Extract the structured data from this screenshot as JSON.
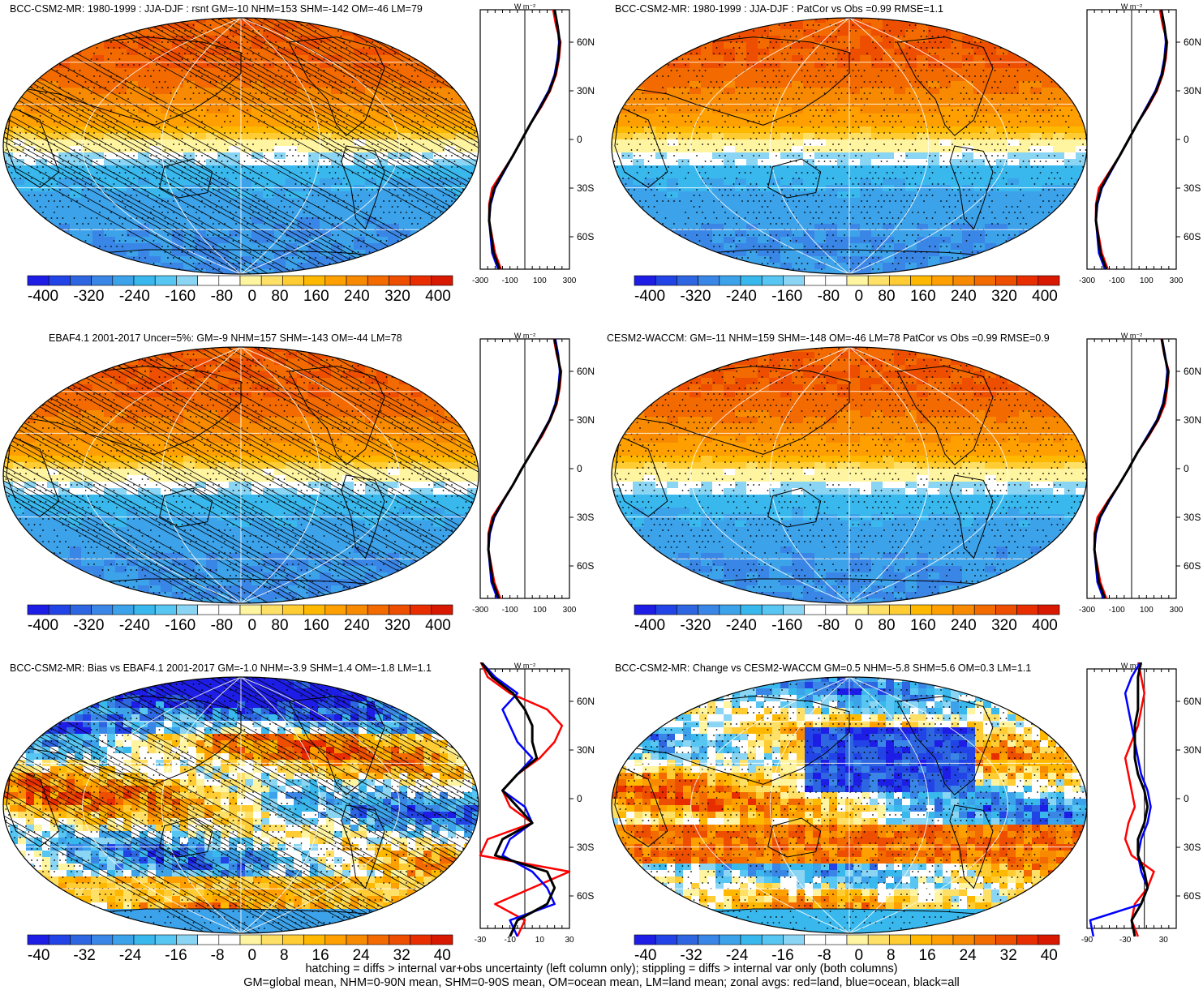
{
  "panels": [
    {
      "id": "p1",
      "title": "BCC-CSM2-MR: 1980-1999 : JJA-DJF : rsnt GM=-10 NHM=153 SHM=-142 OM=-46 LM=79",
      "kind": "seasonal",
      "hatching": true,
      "zonal_unit": "W m⁻²",
      "zonal_xticks": [
        "-300",
        "-100",
        "100",
        "300"
      ],
      "zonal_yticks": [
        "60N",
        "30N",
        "0",
        "30S",
        "60S"
      ],
      "colorbar_labels": [
        "-400",
        "-320",
        "-240",
        "-160",
        "-80",
        "0",
        "80",
        "160",
        "240",
        "320",
        "400"
      ]
    },
    {
      "id": "p2",
      "title": "BCC-CSM2-MR: 1980-1999 : JJA-DJF : PatCor vs Obs =0.99 RMSE=1.1",
      "kind": "seasonal",
      "hatching": false,
      "zonal_unit": "W m⁻²",
      "zonal_xticks": [
        "-300",
        "-100",
        "100",
        "300"
      ],
      "zonal_yticks": [
        "60N",
        "30N",
        "0",
        "30S",
        "60S"
      ],
      "colorbar_labels": [
        "-400",
        "-320",
        "-240",
        "-160",
        "-80",
        "0",
        "80",
        "160",
        "240",
        "320",
        "400"
      ]
    },
    {
      "id": "p3",
      "title": "EBAF4.1 2001-2017 Uncer=5%: GM=-9 NHM=157 SHM=-143 OM=-44 LM=78",
      "kind": "seasonal",
      "hatching": true,
      "zonal_unit": "W m⁻²",
      "zonal_xticks": [
        "-300",
        "-100",
        "100",
        "300"
      ],
      "zonal_yticks": [
        "60N",
        "30N",
        "0",
        "30S",
        "60S"
      ],
      "colorbar_labels": [
        "-400",
        "-320",
        "-240",
        "-160",
        "-80",
        "0",
        "80",
        "160",
        "240",
        "320",
        "400"
      ]
    },
    {
      "id": "p4",
      "title": "CESM2-WACCM: GM=-11 NHM=159 SHM=-148 OM=-46 LM=78 PatCor vs Obs =0.99 RMSE=0.9",
      "kind": "seasonal",
      "hatching": false,
      "zonal_unit": "W m⁻²",
      "zonal_xticks": [
        "-300",
        "-100",
        "100",
        "300"
      ],
      "zonal_yticks": [
        "60N",
        "30N",
        "0",
        "30S",
        "60S"
      ],
      "colorbar_labels": [
        "-400",
        "-320",
        "-240",
        "-160",
        "-80",
        "0",
        "80",
        "160",
        "240",
        "320",
        "400"
      ]
    },
    {
      "id": "p5",
      "title": "BCC-CSM2-MR: Bias vs EBAF4.1 2001-2017 GM=-1.0 NHM=-3.9 SHM=1.4 OM=-1.8 LM=1.1",
      "kind": "bias",
      "hatching": true,
      "zonal_unit": "W m⁻²",
      "zonal_xticks": [
        "-30",
        "-10",
        "10",
        "30"
      ],
      "zonal_yticks": [
        "60N",
        "30N",
        "0",
        "30S",
        "60S"
      ],
      "colorbar_labels": [
        "-40",
        "-32",
        "-24",
        "-16",
        "-8",
        "0",
        "8",
        "16",
        "24",
        "32",
        "40"
      ]
    },
    {
      "id": "p6",
      "title": "BCC-CSM2-MR: Change vs CESM2-WACCM GM=0.5 NHM=-5.8 SHM=5.6 OM=0.3 LM=1.1",
      "kind": "change",
      "hatching": false,
      "zonal_unit": "W m⁻²",
      "zonal_xticks": [
        "-90",
        "-30",
        "30"
      ],
      "zonal_yticks": [
        "60N",
        "30N",
        "0",
        "30S",
        "60S"
      ],
      "colorbar_labels": [
        "-40",
        "-32",
        "-24",
        "-16",
        "-8",
        "0",
        "8",
        "16",
        "24",
        "32",
        "40"
      ]
    }
  ],
  "colors": {
    "colorbar": [
      "#1d1de6",
      "#2244e6",
      "#2d66e0",
      "#3a86e6",
      "#3ca2ea",
      "#39b8ee",
      "#58c6f2",
      "#8ad4f4",
      "#ffffff",
      "#ffffff",
      "#fff4a0",
      "#ffe066",
      "#ffcc33",
      "#ffb800",
      "#ffa000",
      "#f78a00",
      "#f26a00",
      "#ee4e00",
      "#e82e00",
      "#d81800"
    ],
    "land_line": "#000000",
    "zonal_land": "#ff0000",
    "zonal_ocean": "#0000ff",
    "zonal_all": "#000000"
  },
  "footer": {
    "line1": "hatching = diffs > internal var+obs uncertainty (left column only); stippling = diffs > internal var only (both columns)",
    "line2": "GM=global mean, NHM=0-90N mean, SHM=0-90S mean, OM=ocean mean, LM=land mean; zonal avgs: red=land, blue=ocean, black=all"
  },
  "chart_data": [
    {
      "type": "heatmap",
      "title": "BCC-CSM2-MR: 1980-1999 : JJA-DJF : rsnt GM=-10 NHM=153 SHM=-142 OM=-46 LM=79",
      "colorbar_ticks": [
        -400,
        -320,
        -240,
        -160,
        -80,
        0,
        80,
        160,
        240,
        320,
        400
      ],
      "zonal_mean": {
        "xlabel": "W m⁻²",
        "xlim": [
          -300,
          300
        ],
        "lat": [
          80,
          70,
          60,
          50,
          40,
          30,
          20,
          10,
          0,
          -10,
          -20,
          -30,
          -40,
          -50,
          -60,
          -70,
          -80
        ],
        "series": [
          {
            "name": "land",
            "values": [
              190,
              210,
              240,
              230,
              210,
              170,
              110,
              40,
              -20,
              -80,
              -150,
              -220,
              -240,
              -240,
              -220,
              -200,
              -160
            ]
          },
          {
            "name": "ocean",
            "values": [
              200,
              220,
              230,
              220,
              200,
              160,
              100,
              40,
              -20,
              -80,
              -140,
              -200,
              -230,
              -240,
              -230,
              -220,
              -180
            ]
          },
          {
            "name": "all",
            "values": [
              200,
              220,
              235,
              225,
              205,
              165,
              105,
              40,
              -20,
              -80,
              -145,
              -205,
              -235,
              -240,
              -225,
              -210,
              -170
            ]
          }
        ]
      }
    },
    {
      "type": "heatmap",
      "title": "BCC-CSM2-MR: 1980-1999 : JJA-DJF : PatCor vs Obs =0.99 RMSE=1.1",
      "colorbar_ticks": [
        -400,
        -320,
        -240,
        -160,
        -80,
        0,
        80,
        160,
        240,
        320,
        400
      ],
      "zonal_mean": {
        "xlabel": "W m⁻²",
        "xlim": [
          -300,
          300
        ],
        "lat": [
          80,
          70,
          60,
          50,
          40,
          30,
          20,
          10,
          0,
          -10,
          -20,
          -30,
          -40,
          -50,
          -60,
          -70,
          -80
        ],
        "series": [
          {
            "name": "land",
            "values": [
              190,
              210,
              240,
              230,
              210,
              170,
              110,
              40,
              -20,
              -80,
              -150,
              -220,
              -240,
              -240,
              -220,
              -200,
              -160
            ]
          },
          {
            "name": "ocean",
            "values": [
              200,
              220,
              230,
              220,
              200,
              160,
              100,
              40,
              -20,
              -80,
              -140,
              -200,
              -230,
              -240,
              -230,
              -220,
              -180
            ]
          },
          {
            "name": "all",
            "values": [
              200,
              220,
              235,
              225,
              205,
              165,
              105,
              40,
              -20,
              -80,
              -145,
              -205,
              -235,
              -240,
              -225,
              -210,
              -170
            ]
          }
        ]
      }
    },
    {
      "type": "heatmap",
      "title": "EBAF4.1 2001-2017 Uncer=5%: GM=-9 NHM=157 SHM=-143 OM=-44 LM=78",
      "colorbar_ticks": [
        -400,
        -320,
        -240,
        -160,
        -80,
        0,
        80,
        160,
        240,
        320,
        400
      ],
      "zonal_mean": {
        "xlabel": "W m⁻²",
        "xlim": [
          -300,
          300
        ],
        "lat": [
          80,
          70,
          60,
          50,
          40,
          30,
          20,
          10,
          0,
          -10,
          -20,
          -30,
          -40,
          -50,
          -60,
          -70,
          -80
        ],
        "series": [
          {
            "name": "land",
            "values": [
              195,
              215,
              245,
              235,
              215,
              170,
              115,
              45,
              -20,
              -80,
              -150,
              -220,
              -245,
              -245,
              -225,
              -205,
              -165
            ]
          },
          {
            "name": "ocean",
            "values": [
              205,
              225,
              235,
              225,
              205,
              165,
              105,
              45,
              -20,
              -80,
              -145,
              -205,
              -235,
              -245,
              -235,
              -225,
              -185
            ]
          },
          {
            "name": "all",
            "values": [
              200,
              220,
              240,
              230,
              210,
              168,
              108,
              45,
              -20,
              -80,
              -147,
              -210,
              -240,
              -245,
              -230,
              -215,
              -175
            ]
          }
        ]
      }
    },
    {
      "type": "heatmap",
      "title": "CESM2-WACCM: GM=-11 NHM=159 SHM=-148 OM=-46 LM=78 PatCor vs Obs =0.99 RMSE=0.9",
      "colorbar_ticks": [
        -400,
        -320,
        -240,
        -160,
        -80,
        0,
        80,
        160,
        240,
        320,
        400
      ],
      "zonal_mean": {
        "xlabel": "W m⁻²",
        "xlim": [
          -300,
          300
        ],
        "lat": [
          80,
          70,
          60,
          50,
          40,
          30,
          20,
          10,
          0,
          -10,
          -20,
          -30,
          -40,
          -50,
          -60,
          -70,
          -80
        ],
        "series": [
          {
            "name": "land",
            "values": [
              200,
              220,
              250,
              240,
              225,
              180,
              115,
              40,
              -20,
              -85,
              -160,
              -230,
              -250,
              -250,
              -230,
              -210,
              -170
            ]
          },
          {
            "name": "ocean",
            "values": [
              205,
              225,
              240,
              230,
              210,
              170,
              105,
              40,
              -20,
              -85,
              -150,
              -210,
              -240,
              -250,
              -240,
              -230,
              -190
            ]
          },
          {
            "name": "all",
            "values": [
              203,
              222,
              245,
              235,
              215,
              175,
              110,
              40,
              -20,
              -85,
              -155,
              -215,
              -245,
              -250,
              -235,
              -220,
              -180
            ]
          }
        ]
      }
    },
    {
      "type": "heatmap",
      "title": "BCC-CSM2-MR: Bias vs EBAF4.1 2001-2017 GM=-1.0 NHM=-3.9 SHM=1.4 OM=-1.8 LM=1.1",
      "colorbar_ticks": [
        -40,
        -32,
        -24,
        -16,
        -8,
        0,
        8,
        16,
        24,
        32,
        40
      ],
      "zonal_mean": {
        "xlabel": "W m⁻²",
        "xlim": [
          -30,
          30
        ],
        "lat": [
          85,
          75,
          65,
          55,
          45,
          35,
          25,
          15,
          5,
          -5,
          -15,
          -25,
          -35,
          -45,
          -55,
          -65,
          -75,
          -85
        ],
        "series": [
          {
            "name": "land",
            "values": [
              -30,
              -25,
              -10,
              15,
              25,
              20,
              10,
              -5,
              -15,
              -10,
              5,
              -25,
              -30,
              30,
              5,
              -20,
              0,
              -5
            ]
          },
          {
            "name": "ocean",
            "values": [
              -30,
              -20,
              -5,
              -15,
              -10,
              -5,
              5,
              -5,
              -15,
              0,
              5,
              -10,
              -15,
              5,
              15,
              20,
              -10,
              -5
            ]
          },
          {
            "name": "all",
            "values": [
              -30,
              -22,
              -8,
              0,
              5,
              5,
              8,
              -5,
              -15,
              -5,
              5,
              -15,
              -20,
              15,
              20,
              15,
              -5,
              -10
            ]
          }
        ]
      }
    },
    {
      "type": "heatmap",
      "title": "BCC-CSM2-MR: Change vs CESM2-WACCM GM=0.5 NHM=-5.8 SHM=5.6 OM=0.3 LM=1.1",
      "colorbar_ticks": [
        -40,
        -32,
        -24,
        -16,
        -8,
        0,
        8,
        16,
        24,
        32,
        40
      ],
      "zonal_mean": {
        "xlabel": "W m⁻²",
        "xlim": [
          -90,
          50
        ],
        "lat": [
          85,
          75,
          65,
          55,
          45,
          35,
          25,
          15,
          5,
          -5,
          -15,
          -25,
          -35,
          -45,
          -55,
          -65,
          -75,
          -85
        ],
        "series": [
          {
            "name": "land",
            "values": [
              -10,
              -5,
              0,
              -5,
              -10,
              -20,
              -30,
              -25,
              -20,
              -15,
              -25,
              -30,
              -20,
              15,
              5,
              -15,
              -20,
              -10
            ]
          },
          {
            "name": "ocean",
            "values": [
              -5,
              -20,
              -30,
              -25,
              -20,
              -15,
              -10,
              -5,
              5,
              10,
              5,
              -5,
              -10,
              -5,
              5,
              -5,
              -85,
              -80
            ]
          },
          {
            "name": "all",
            "values": [
              -5,
              -10,
              -10,
              -10,
              -15,
              -15,
              -15,
              -10,
              0,
              5,
              0,
              -10,
              -10,
              0,
              5,
              -5,
              -20,
              -15
            ]
          }
        ]
      }
    }
  ]
}
